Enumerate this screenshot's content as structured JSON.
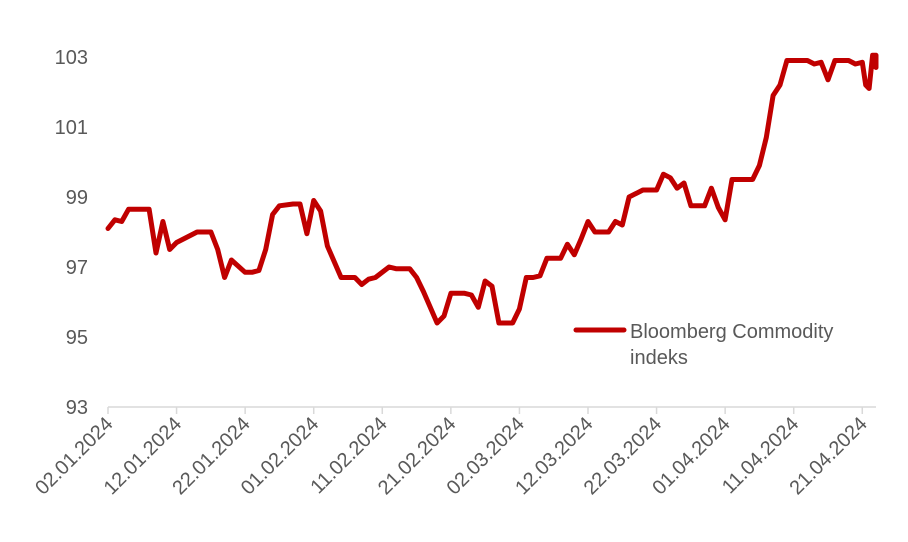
{
  "chart_data": {
    "type": "line",
    "ylim": [
      93,
      104
    ],
    "y_ticks": [
      "93",
      "95",
      "97",
      "99",
      "101",
      "103"
    ],
    "x_tick_labels": [
      "02.01.2024",
      "12.01.2024",
      "22.01.2024",
      "01.02.2024",
      "11.02.2024",
      "21.02.2024",
      "02.03.2024",
      "12.03.2024",
      "22.03.2024",
      "01.04.2024",
      "11.04.2024",
      "21.04.2024"
    ],
    "x_range": [
      "02.01.2024",
      "23.04.2024"
    ],
    "grid": false,
    "legend_position": "right, lower-middle",
    "color": "#C00000",
    "series": [
      {
        "name": "Bloomberg Commodity indeks",
        "points": [
          [
            "02.01.2024",
            98.1
          ],
          [
            "03.01.2024",
            98.35
          ],
          [
            "04.01.2024",
            98.3
          ],
          [
            "05.01.2024",
            98.65
          ],
          [
            "08.01.2024",
            98.65
          ],
          [
            "09.01.2024",
            97.4
          ],
          [
            "10.01.2024",
            98.3
          ],
          [
            "11.01.2024",
            97.5
          ],
          [
            "12.01.2024",
            97.7
          ],
          [
            "15.01.2024",
            98.0
          ],
          [
            "16.01.2024",
            98.0
          ],
          [
            "17.01.2024",
            98.0
          ],
          [
            "18.01.2024",
            97.5
          ],
          [
            "19.01.2024",
            96.7
          ],
          [
            "20.01.2024",
            97.2
          ],
          [
            "22.01.2024",
            96.85
          ],
          [
            "23.01.2024",
            96.85
          ],
          [
            "24.01.2024",
            96.9
          ],
          [
            "25.01.2024",
            97.5
          ],
          [
            "26.01.2024",
            98.5
          ],
          [
            "27.01.2024",
            98.75
          ],
          [
            "29.01.2024",
            98.8
          ],
          [
            "30.01.2024",
            98.8
          ],
          [
            "31.01.2024",
            97.95
          ],
          [
            "01.02.2024",
            98.9
          ],
          [
            "02.02.2024",
            98.6
          ],
          [
            "03.02.2024",
            97.6
          ],
          [
            "05.02.2024",
            96.7
          ],
          [
            "06.02.2024",
            96.7
          ],
          [
            "07.02.2024",
            96.7
          ],
          [
            "08.02.2024",
            96.5
          ],
          [
            "09.02.2024",
            96.65
          ],
          [
            "10.02.2024",
            96.7
          ],
          [
            "12.02.2024",
            97.0
          ],
          [
            "13.02.2024",
            96.95
          ],
          [
            "14.02.2024",
            96.95
          ],
          [
            "15.02.2024",
            96.95
          ],
          [
            "16.02.2024",
            96.7
          ],
          [
            "17.02.2024",
            96.3
          ],
          [
            "19.02.2024",
            95.4
          ],
          [
            "20.02.2024",
            95.6
          ],
          [
            "21.02.2024",
            96.25
          ],
          [
            "22.02.2024",
            96.25
          ],
          [
            "23.02.2024",
            96.25
          ],
          [
            "24.02.2024",
            96.2
          ],
          [
            "25.02.2024",
            95.85
          ],
          [
            "26.02.2024",
            96.6
          ],
          [
            "27.02.2024",
            96.45
          ],
          [
            "28.02.2024",
            95.4
          ],
          [
            "29.02.2024",
            95.4
          ],
          [
            "01.03.2024",
            95.4
          ],
          [
            "02.03.2024",
            95.8
          ],
          [
            "03.03.2024",
            96.7
          ],
          [
            "04.03.2024",
            96.7
          ],
          [
            "05.03.2024",
            96.75
          ],
          [
            "06.03.2024",
            97.25
          ],
          [
            "07.03.2024",
            97.25
          ],
          [
            "08.03.2024",
            97.25
          ],
          [
            "09.03.2024",
            97.65
          ],
          [
            "10.03.2024",
            97.35
          ],
          [
            "11.03.2024",
            97.8
          ],
          [
            "12.03.2024",
            98.3
          ],
          [
            "13.03.2024",
            98.0
          ],
          [
            "14.03.2024",
            98.0
          ],
          [
            "15.03.2024",
            98.0
          ],
          [
            "16.03.2024",
            98.3
          ],
          [
            "17.03.2024",
            98.2
          ],
          [
            "18.03.2024",
            99.0
          ],
          [
            "19.03.2024",
            99.1
          ],
          [
            "20.03.2024",
            99.2
          ],
          [
            "21.03.2024",
            99.2
          ],
          [
            "22.03.2024",
            99.2
          ],
          [
            "23.03.2024",
            99.65
          ],
          [
            "24.03.2024",
            99.55
          ],
          [
            "25.03.2024",
            99.25
          ],
          [
            "26.03.2024",
            99.4
          ],
          [
            "27.03.2024",
            98.75
          ],
          [
            "28.03.2024",
            98.75
          ],
          [
            "29.03.2024",
            98.75
          ],
          [
            "30.03.2024",
            99.25
          ],
          [
            "31.03.2024",
            98.7
          ],
          [
            "01.04.2024",
            98.35
          ],
          [
            "02.04.2024",
            99.5
          ],
          [
            "03.04.2024",
            99.5
          ],
          [
            "04.04.2024",
            99.5
          ],
          [
            "05.04.2024",
            99.5
          ],
          [
            "06.04.2024",
            99.9
          ],
          [
            "07.04.2024",
            100.7
          ],
          [
            "08.04.2024",
            101.9
          ],
          [
            "09.04.2024",
            102.2
          ],
          [
            "10.04.2024",
            102.9
          ],
          [
            "11.04.2024",
            102.9
          ],
          [
            "12.04.2024",
            102.9
          ],
          [
            "13.04.2024",
            102.9
          ],
          [
            "14.04.2024",
            102.8
          ],
          [
            "15.04.2024",
            102.85
          ],
          [
            "16.04.2024",
            102.35
          ],
          [
            "17.04.2024",
            102.9
          ],
          [
            "18.04.2024",
            102.9
          ],
          [
            "19.04.2024",
            102.9
          ],
          [
            "20.04.2024",
            102.8
          ],
          [
            "21.04.2024",
            102.85
          ],
          [
            "21.04.2024",
            102.2
          ],
          [
            "22.04.2024",
            102.1
          ],
          [
            "22.04.2024",
            103.05
          ],
          [
            "23.04.2024",
            103.05
          ],
          [
            "23.04.2024",
            103.05
          ],
          [
            "23.04.2024",
            102.7
          ]
        ]
      }
    ]
  }
}
